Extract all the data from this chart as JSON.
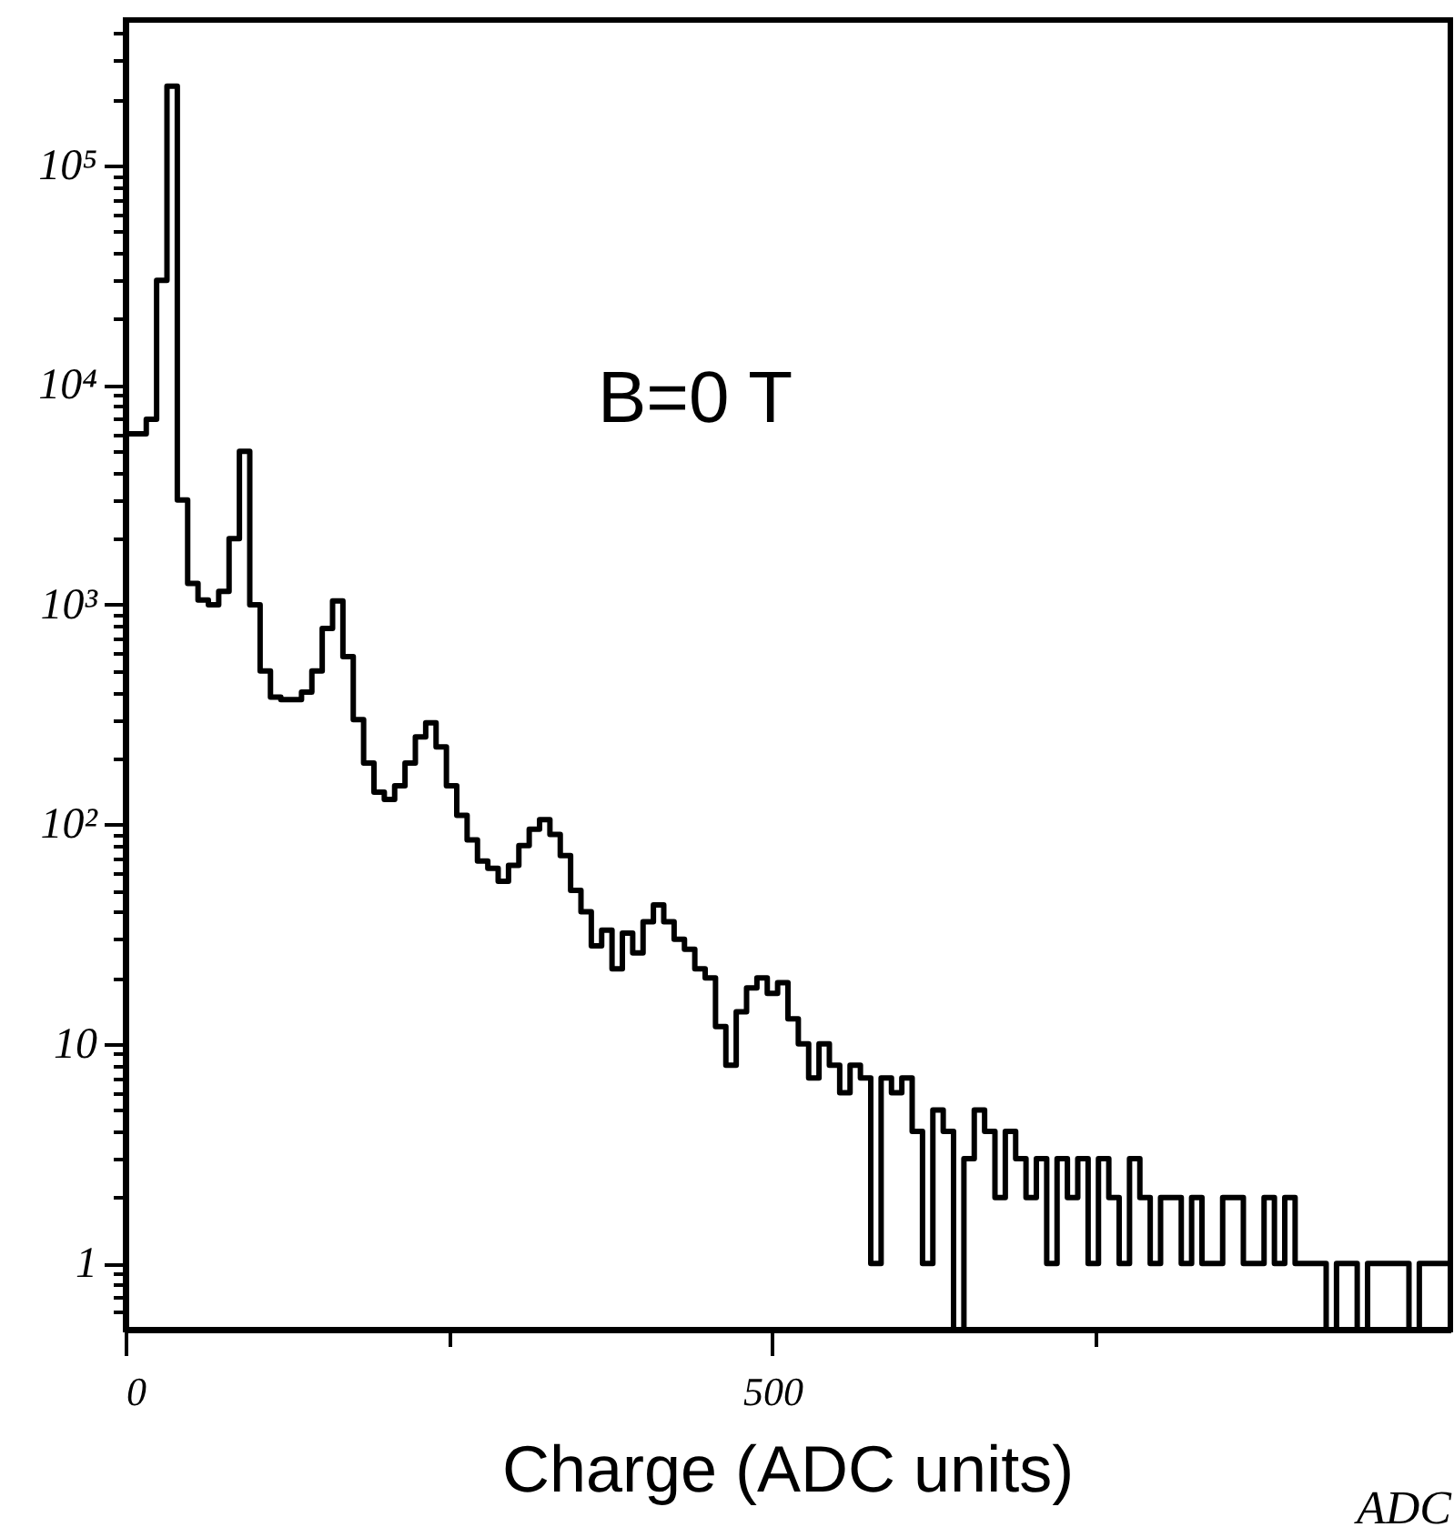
{
  "chart_data": {
    "type": "histogram",
    "xlabel": "ADC",
    "annotations": [
      "B=0 T",
      "Charge (ADC units)"
    ],
    "color": "#000000",
    "log": true,
    "xlim": [
      0,
      1024
    ],
    "xticks": [
      0,
      {
        "value": 250,
        "label": null
      },
      500,
      {
        "value": 750,
        "label": null
      }
    ],
    "ylim": [
      0.5,
      460000
    ],
    "yticks": [
      {
        "value": 0.6,
        "label": null
      },
      {
        "value": 0.7,
        "label": null
      },
      {
        "value": 0.8,
        "label": null
      },
      {
        "value": 0.9,
        "label": null
      },
      1,
      {
        "value": 2,
        "label": null
      },
      {
        "value": 3,
        "label": null
      },
      {
        "value": 4,
        "label": null
      },
      {
        "value": 5,
        "label": null
      },
      {
        "value": 6,
        "label": null
      },
      {
        "value": 7,
        "label": null
      },
      {
        "value": 8,
        "label": null
      },
      {
        "value": 9,
        "label": null
      },
      10,
      {
        "value": 20,
        "label": null
      },
      {
        "value": 30,
        "label": null
      },
      {
        "value": 40,
        "label": null
      },
      {
        "value": 50,
        "label": null
      },
      {
        "value": 60,
        "label": null
      },
      {
        "value": 70,
        "label": null
      },
      {
        "value": 80,
        "label": null
      },
      {
        "value": 90,
        "label": null
      },
      {
        "value": 100,
        "label": "10²"
      },
      {
        "value": 200,
        "label": null
      },
      {
        "value": 300,
        "label": null
      },
      {
        "value": 400,
        "label": null
      },
      {
        "value": 500,
        "label": null
      },
      {
        "value": 600,
        "label": null
      },
      {
        "value": 700,
        "label": null
      },
      {
        "value": 800,
        "label": null
      },
      {
        "value": 900,
        "label": null
      },
      {
        "value": 1000,
        "label": "10³"
      },
      {
        "value": 2000,
        "label": null
      },
      {
        "value": 3000,
        "label": null
      },
      {
        "value": 4000,
        "label": null
      },
      {
        "value": 5000,
        "label": null
      },
      {
        "value": 6000,
        "label": null
      },
      {
        "value": 7000,
        "label": null
      },
      {
        "value": 8000,
        "label": null
      },
      {
        "value": 9000,
        "label": null
      },
      {
        "value": 10000,
        "label": "10⁴"
      },
      {
        "value": 20000,
        "label": null
      },
      {
        "value": 30000,
        "label": null
      },
      {
        "value": 40000,
        "label": null
      },
      {
        "value": 50000,
        "label": null
      },
      {
        "value": 60000,
        "label": null
      },
      {
        "value": 70000,
        "label": null
      },
      {
        "value": 80000,
        "label": null
      },
      {
        "value": 90000,
        "label": null
      },
      {
        "value": 100000,
        "label": "10⁵"
      },
      {
        "value": 200000,
        "label": null
      },
      {
        "value": 300000,
        "label": null
      },
      {
        "value": 400000,
        "label": null
      }
    ],
    "bins": [
      0,
      8,
      16,
      24,
      32,
      40,
      48,
      56,
      64,
      72,
      80,
      88,
      96,
      104,
      112,
      120,
      128,
      136,
      144,
      152,
      160,
      168,
      176,
      184,
      192,
      200,
      208,
      216,
      224,
      232,
      240,
      248,
      256,
      264,
      272,
      280,
      288,
      296,
      304,
      312,
      320,
      328,
      336,
      344,
      352,
      360,
      368,
      376,
      384,
      392,
      400,
      408,
      416,
      424,
      432,
      440,
      448,
      456,
      464,
      472,
      480,
      488,
      496,
      504,
      512,
      520,
      528,
      536,
      544,
      552,
      560,
      568,
      576,
      584,
      592,
      600,
      608,
      616,
      624,
      632,
      640,
      648,
      656,
      664,
      672,
      680,
      688,
      696,
      704,
      712,
      720,
      728,
      736,
      744,
      752,
      760,
      768,
      776,
      784,
      792,
      800,
      808,
      816,
      824,
      832,
      840,
      848,
      856,
      864,
      872,
      880,
      888,
      896,
      904,
      912,
      920,
      928,
      936,
      944,
      952,
      960,
      968,
      976,
      984,
      992,
      1000,
      1008,
      1016,
      1024
    ],
    "values": [
      6000,
      6000,
      7000,
      30000,
      230000,
      3000,
      1250,
      1050,
      1000,
      1150,
      2000,
      5000,
      1000,
      500,
      380,
      370,
      370,
      400,
      500,
      780,
      1040,
      580,
      300,
      190,
      140,
      130,
      150,
      190,
      250,
      290,
      225,
      150,
      110,
      85,
      68,
      63,
      55,
      65,
      80,
      95,
      105,
      90,
      72,
      50,
      40,
      28,
      33,
      22,
      32,
      26,
      36,
      43,
      36,
      30,
      27,
      22,
      20,
      12,
      8,
      14,
      18,
      20,
      17,
      19,
      13,
      10,
      7,
      10,
      8,
      6,
      8,
      7,
      1,
      7,
      6,
      7,
      4,
      1,
      5,
      4,
      null,
      3,
      5,
      4,
      2,
      4,
      3,
      2,
      3,
      1,
      3,
      2,
      3,
      1,
      3,
      2,
      1,
      3,
      2,
      1,
      2,
      2,
      1,
      2,
      1,
      1,
      2,
      2,
      1,
      1,
      2,
      1,
      2,
      1,
      1,
      1,
      null,
      1,
      1,
      null,
      1,
      1,
      1,
      1,
      null,
      1,
      1,
      1
    ]
  }
}
